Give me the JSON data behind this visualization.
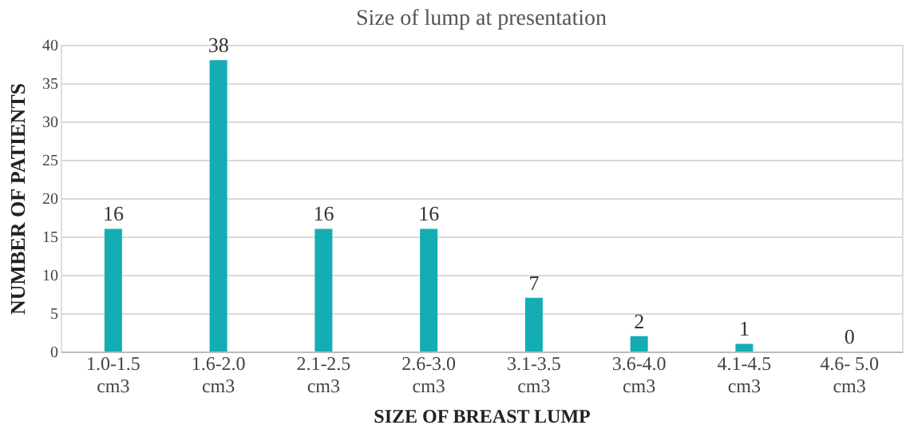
{
  "chart_data": {
    "type": "bar",
    "title": "Size of lump at presentation",
    "xlabel": "SIZE OF BREAST LUMP",
    "ylabel": "NUMBER OF PATIENTS",
    "categories": [
      "1.0-1.5 cm3",
      "1.6-2.0 cm3",
      "2.1-2.5 cm3",
      "2.6-3.0 cm3",
      "3.1-3.5 cm3",
      "3.6-4.0 cm3",
      "4.1-4.5 cm3",
      "4.6- 5.0 cm3"
    ],
    "values": [
      16,
      38,
      16,
      16,
      7,
      2,
      1,
      0
    ],
    "color": "#14adb3",
    "ylim": [
      0,
      40
    ],
    "yticks": [
      0,
      5,
      10,
      15,
      20,
      25,
      30,
      35,
      40
    ],
    "grid": "y",
    "data_labels": true
  }
}
